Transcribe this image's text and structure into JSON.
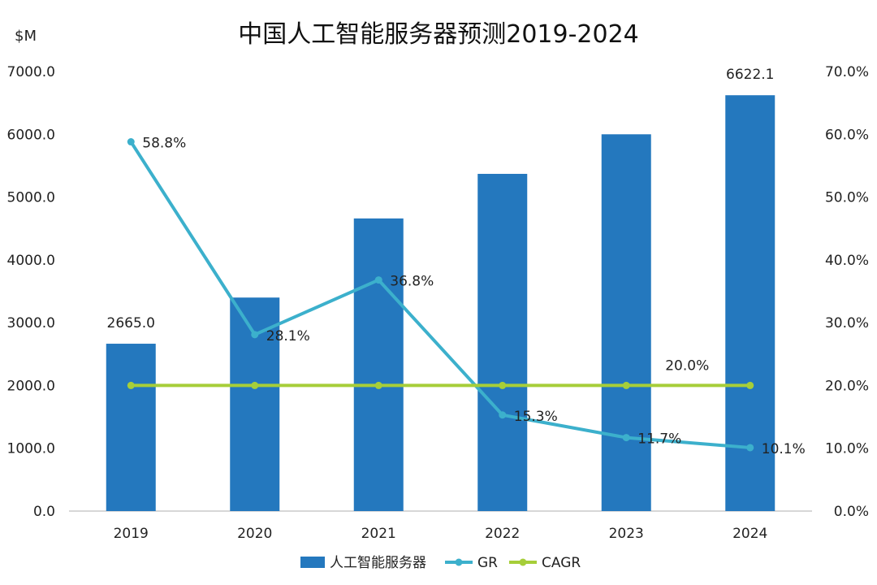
{
  "chart_data": {
    "type": "bar",
    "title": "中国人工智能服务器预测2019-2024",
    "y_unit_label": "$M",
    "categories": [
      "2019",
      "2020",
      "2021",
      "2022",
      "2023",
      "2024"
    ],
    "ylim": [
      0,
      7000
    ],
    "y2lim": [
      0,
      70
    ],
    "y_ticks": [
      "0.0",
      "1000.0",
      "2000.0",
      "3000.0",
      "4000.0",
      "5000.0",
      "6000.0",
      "7000.0"
    ],
    "y2_ticks": [
      "0.0%",
      "10.0%",
      "20.0%",
      "30.0%",
      "40.0%",
      "50.0%",
      "60.0%",
      "70.0%"
    ],
    "series": [
      {
        "name": "人工智能服务器",
        "kind": "bar",
        "axis": "left",
        "color": "#2478BE",
        "values": [
          2665.0,
          3400,
          4660,
          5370,
          6000,
          6622.1
        ],
        "labels": [
          "2665.0",
          "",
          "",
          "",
          "",
          "6622.1"
        ]
      },
      {
        "name": "GR",
        "kind": "line",
        "axis": "right",
        "color": "#3CB0CC",
        "values": [
          58.8,
          28.1,
          36.8,
          15.3,
          11.7,
          10.1
        ],
        "labels": [
          "58.8%",
          "28.1%",
          "36.8%",
          "15.3%",
          "11.7%",
          "10.1%"
        ]
      },
      {
        "name": "CAGR",
        "kind": "line",
        "axis": "right",
        "color": "#A6CE39",
        "values": [
          20.0,
          20.0,
          20.0,
          20.0,
          20.0,
          20.0
        ],
        "labels": [
          "",
          "",
          "",
          "",
          "20.0%",
          ""
        ]
      }
    ],
    "grid": false,
    "legend_position": "bottom"
  }
}
